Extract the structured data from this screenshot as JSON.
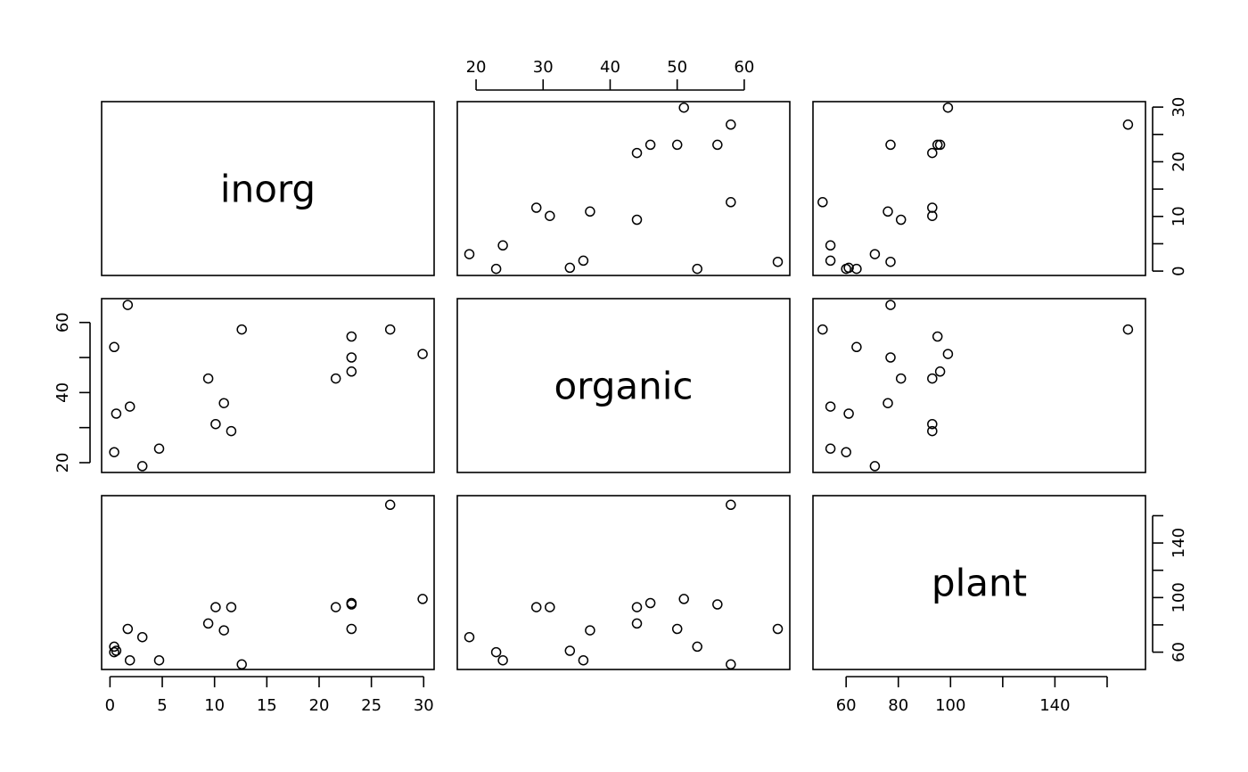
{
  "chart_data": {
    "type": "scatter",
    "title": "",
    "variables": [
      "inorg",
      "organic",
      "plant"
    ],
    "axis_ticks": {
      "inorg": {
        "values": [
          0,
          5,
          10,
          15,
          20,
          25,
          30
        ],
        "labels": [
          "0",
          "5",
          "10",
          "15",
          "20",
          "25",
          "30"
        ]
      },
      "organic": {
        "values": [
          20,
          30,
          40,
          50,
          60
        ],
        "labels": [
          "20",
          "30",
          "40",
          "50",
          "60"
        ]
      },
      "plant": {
        "values": [
          60,
          80,
          100,
          120,
          140,
          160
        ],
        "labels": [
          "60",
          "80",
          "100",
          "",
          "140",
          ""
        ]
      }
    },
    "axis_ticks_left": {
      "values": [
        20,
        30,
        40,
        50,
        60
      ],
      "labels": [
        "20",
        "",
        "40",
        "",
        "60"
      ]
    },
    "axis_ticks_right_inorg": {
      "values": [
        0,
        5,
        10,
        15,
        20,
        25,
        30
      ],
      "labels": [
        "0",
        "",
        "10",
        "",
        "20",
        "",
        "30"
      ]
    },
    "axis_ticks_right_plant": {
      "values": [
        60,
        80,
        100,
        120,
        140,
        160
      ],
      "labels": [
        "60",
        "",
        "100",
        "",
        "140",
        ""
      ]
    },
    "ranges": {
      "inorg": [
        -0.8,
        31.0
      ],
      "organic": [
        17.2,
        66.8
      ],
      "plant": [
        47.3,
        174.7
      ]
    },
    "grid": false,
    "legend": "none",
    "observations": {
      "inorg": [
        0.4,
        0.4,
        3.1,
        0.6,
        4.7,
        1.7,
        9.4,
        10.1,
        11.6,
        12.6,
        10.9,
        23.1,
        23.1,
        21.6,
        23.1,
        1.9,
        26.8,
        29.9
      ],
      "organic": [
        53,
        23,
        19,
        34,
        24,
        65,
        44,
        31,
        29,
        58,
        37,
        46,
        50,
        44,
        56,
        36,
        58,
        51
      ],
      "plant": [
        64,
        60,
        71,
        61,
        54,
        77,
        81,
        93,
        93,
        51,
        76,
        96,
        77,
        93,
        95,
        54,
        168,
        99
      ]
    }
  }
}
